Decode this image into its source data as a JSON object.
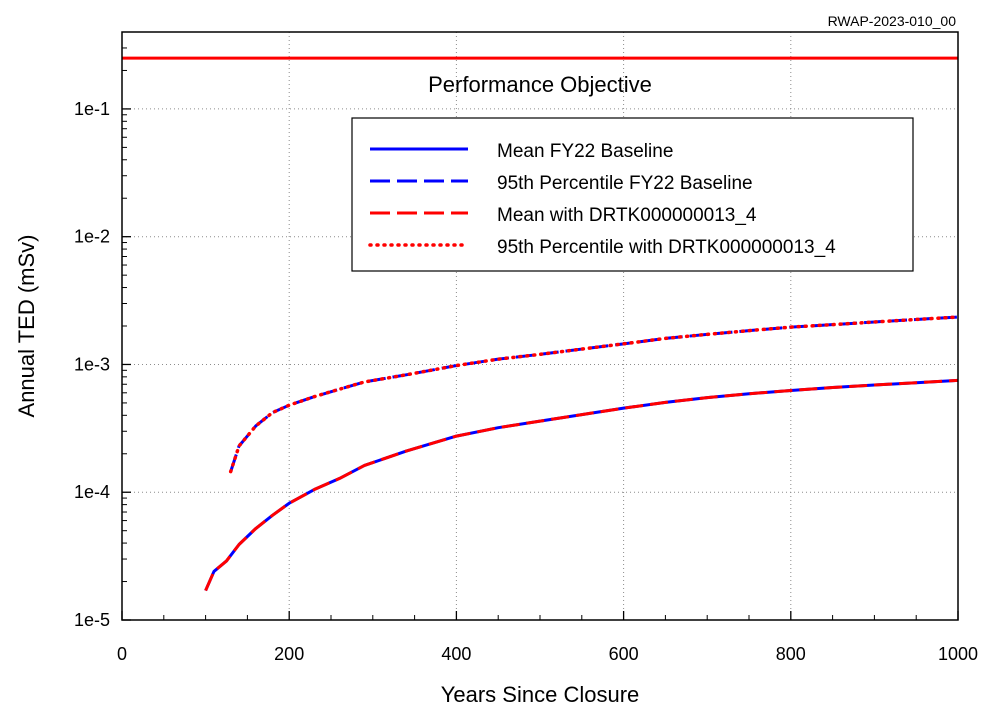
{
  "chart_data": {
    "type": "line",
    "header_id": "RWAP-2023-010_00",
    "xlabel": "Years Since Closure",
    "ylabel": "Annual TED (mSv)",
    "xlim": [
      0,
      1000
    ],
    "ylim": [
      1e-05,
      0.4
    ],
    "y_scale": "log",
    "grid": "dotted",
    "x_ticks": [
      0,
      200,
      400,
      600,
      800,
      1000
    ],
    "x_tick_labels": [
      "0",
      "200",
      "400",
      "600",
      "800",
      "1000"
    ],
    "y_ticks": [
      1e-05,
      0.0001,
      0.001,
      0.01,
      0.1
    ],
    "y_tick_labels": [
      "1e-5",
      "1e-4",
      "1e-3",
      "1e-2",
      "1e-1"
    ],
    "legend_position": "upper-right",
    "reference_line": {
      "label": "Performance Objective",
      "y": 0.25,
      "color": "#ff0000"
    },
    "series": [
      {
        "name": "Mean FY22 Baseline",
        "color": "#0000ff",
        "style": "solid",
        "x": [
          100,
          110,
          125,
          140,
          160,
          180,
          200,
          210,
          230,
          260,
          290,
          340,
          400,
          450,
          500,
          550,
          600,
          650,
          700,
          750,
          800,
          850,
          900,
          950,
          1000
        ],
        "y": [
          1.7e-05,
          2.4e-05,
          2.9e-05,
          3.9e-05,
          5.2e-05,
          6.6e-05,
          8.2e-05,
          8.9e-05,
          0.000105,
          0.000128,
          0.000162,
          0.00021,
          0.000275,
          0.00032,
          0.00036,
          0.000405,
          0.000455,
          0.000505,
          0.00055,
          0.00059,
          0.000625,
          0.00066,
          0.00069,
          0.00072,
          0.00075
        ]
      },
      {
        "name": "95th Percentile FY22 Baseline",
        "color": "#0000ff",
        "style": "dashed",
        "x": [
          130,
          140,
          160,
          180,
          200,
          230,
          260,
          290,
          340,
          400,
          450,
          500,
          550,
          600,
          650,
          700,
          750,
          800,
          850,
          900,
          950,
          1000
        ],
        "y": [
          0.000145,
          0.00023,
          0.00033,
          0.00042,
          0.00048,
          0.00056,
          0.00064,
          0.00073,
          0.00083,
          0.00098,
          0.0011,
          0.0012,
          0.00132,
          0.00145,
          0.0016,
          0.00172,
          0.00184,
          0.00196,
          0.00205,
          0.00215,
          0.00225,
          0.00235
        ]
      },
      {
        "name": "Mean with DRTK000000013_4",
        "color": "#ff0000",
        "style": "dashed",
        "x": [
          100,
          110,
          125,
          140,
          160,
          180,
          200,
          210,
          230,
          260,
          290,
          340,
          400,
          450,
          500,
          550,
          600,
          650,
          700,
          750,
          800,
          850,
          900,
          950,
          1000
        ],
        "y": [
          1.7e-05,
          2.4e-05,
          2.9e-05,
          3.9e-05,
          5.2e-05,
          6.6e-05,
          8.2e-05,
          8.9e-05,
          0.000105,
          0.000128,
          0.000162,
          0.00021,
          0.000275,
          0.00032,
          0.00036,
          0.000405,
          0.000455,
          0.000505,
          0.00055,
          0.00059,
          0.000625,
          0.00066,
          0.00069,
          0.00072,
          0.00075
        ]
      },
      {
        "name": "95th Percentile with DRTK000000013_4",
        "color": "#ff0000",
        "style": "dotted",
        "x": [
          130,
          140,
          160,
          180,
          200,
          230,
          260,
          290,
          340,
          400,
          450,
          500,
          550,
          600,
          650,
          700,
          750,
          800,
          850,
          900,
          950,
          1000
        ],
        "y": [
          0.000145,
          0.00023,
          0.00033,
          0.00042,
          0.00048,
          0.00056,
          0.00064,
          0.00073,
          0.00083,
          0.00098,
          0.0011,
          0.0012,
          0.00132,
          0.00145,
          0.0016,
          0.00172,
          0.00184,
          0.00196,
          0.00205,
          0.00215,
          0.00225,
          0.00235
        ]
      }
    ]
  }
}
